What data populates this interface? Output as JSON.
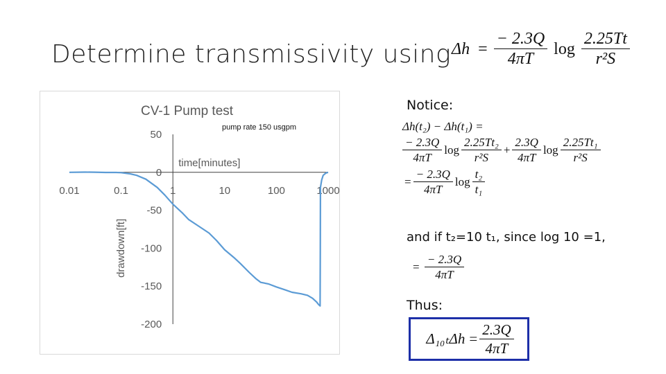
{
  "slide": {
    "title": "Determine transmissivity using",
    "title_equation": {
      "lhs": "Δh",
      "eq": "=",
      "num": "− 2.3Q",
      "den": "4πT",
      "log": "log",
      "num2": "2.25Tt",
      "den2": "r²S"
    },
    "notice_label": "Notice:",
    "derivation": {
      "line1": "Δh(t₂) − Δh(t₁) =",
      "l2_num_a": "− 2.3Q",
      "l2_den_a": "4πT",
      "l2_log": "log",
      "l2_num_b": "2.25Tt₂",
      "l2_den_b": "r²S",
      "l2_plus": "+",
      "l2_num_c": "2.3Q",
      "l2_den_c": "4πT",
      "l2_log2": "log",
      "l2_num_d": "2.25Tt₁",
      "l2_den_d": "r²S",
      "l3_eq": "=",
      "l3_num": "− 2.3Q",
      "l3_den": "4πT",
      "l3_log": "log",
      "l3_num2": "t₂",
      "l3_den2": "t₁"
    },
    "andif_text": "and if t₂=10 t₁, since log 10 =1,",
    "andif_eq": {
      "eq": "=",
      "num": "− 2.3Q",
      "den": "4πT"
    },
    "thus_label": "Thus:",
    "boxed_eq": {
      "lhs": "Δ₁₀ₜΔh",
      "eq": "=",
      "num": "2.3Q",
      "den": "4πT"
    },
    "colors": {
      "line": "#5b9bd5",
      "box_border": "#1d2fa8",
      "axis": "#404040",
      "label": "#595959"
    }
  },
  "chart_data": {
    "type": "line",
    "title": "CV-1 Pump test",
    "subtitle": "pump rate 150 usgpm",
    "xlabel": "time[minutes]",
    "ylabel": "drawdown[ft]",
    "x_scale": "log",
    "xlim": [
      0.01,
      1000
    ],
    "ylim": [
      -200,
      50
    ],
    "x_ticks": [
      "0.01",
      "0.1",
      "1",
      "10",
      "100",
      "1000"
    ],
    "y_ticks": [
      "50",
      "0",
      "-50",
      "-100",
      "-150",
      "-200"
    ],
    "grid": false,
    "series": [
      {
        "points": [
          [
            0.01,
            0
          ],
          [
            0.02,
            0.3
          ],
          [
            0.03,
            0.2
          ],
          [
            0.05,
            -0.2
          ],
          [
            0.08,
            -0.2
          ],
          [
            0.1,
            -0.5
          ],
          [
            0.15,
            -2
          ],
          [
            0.2,
            -4
          ],
          [
            0.3,
            -9
          ],
          [
            0.5,
            -20
          ],
          [
            0.7,
            -30
          ],
          [
            1,
            -42
          ],
          [
            1.5,
            -53
          ],
          [
            2,
            -62
          ],
          [
            3,
            -70
          ],
          [
            5,
            -80
          ],
          [
            7,
            -90
          ],
          [
            10,
            -102
          ],
          [
            15,
            -112
          ],
          [
            20,
            -120
          ],
          [
            30,
            -132
          ],
          [
            40,
            -140
          ],
          [
            50,
            -145
          ],
          [
            70,
            -147
          ],
          [
            100,
            -151
          ],
          [
            150,
            -155
          ],
          [
            200,
            -158
          ],
          [
            300,
            -160
          ],
          [
            400,
            -162
          ],
          [
            500,
            -166
          ],
          [
            600,
            -171
          ],
          [
            650,
            -174
          ],
          [
            700,
            -176
          ],
          [
            705,
            -100
          ],
          [
            710,
            -20
          ],
          [
            750,
            -10
          ],
          [
            800,
            -4
          ],
          [
            900,
            -1
          ],
          [
            1000,
            0
          ]
        ]
      }
    ]
  }
}
